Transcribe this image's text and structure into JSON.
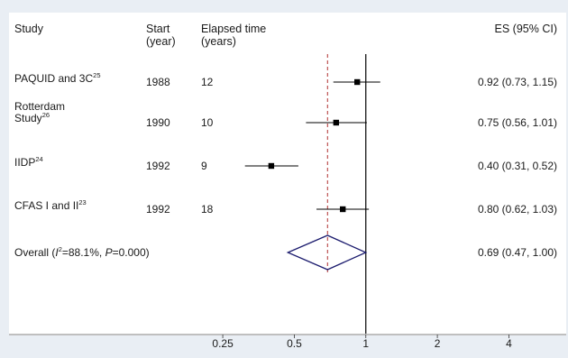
{
  "headers": {
    "study": "Study",
    "start_line1": "Start",
    "start_line2": "(year)",
    "elapsed_line1": "Elapsed time",
    "elapsed_line2": "(years)",
    "es": "ES (95% CI)"
  },
  "overall_label": {
    "prefix": "Overall (",
    "i_sym": "I",
    "i_sup": "2",
    "mid": "=88.1%, ",
    "p_sym": "P",
    "suffix": "=0.000)"
  },
  "chart_data": {
    "type": "forest",
    "x_scale": "log",
    "xlim": [
      0.16,
      6.5
    ],
    "xticks": [
      0.25,
      0.5,
      1,
      2,
      4
    ],
    "tick_labels": [
      "0.25",
      "0.5",
      "1",
      "2",
      "4"
    ],
    "null_line": 1,
    "overall_line": 0.69,
    "studies": [
      {
        "name_lines": [
          "PAQUID and 3C"
        ],
        "sup": "25",
        "start": "1988",
        "elapsed": "12",
        "es": 0.92,
        "lo": 0.73,
        "hi": 1.15,
        "es_text": "0.92 (0.73, 1.15)"
      },
      {
        "name_lines": [
          "Rotterdam",
          "Study"
        ],
        "sup": "26",
        "start": "1990",
        "elapsed": "10",
        "es": 0.75,
        "lo": 0.56,
        "hi": 1.01,
        "es_text": "0.75 (0.56, 1.01)"
      },
      {
        "name_lines": [
          "IIDP"
        ],
        "sup": "24",
        "start": "1992",
        "elapsed": "9",
        "es": 0.4,
        "lo": 0.31,
        "hi": 0.52,
        "es_text": "0.40 (0.31, 0.52)"
      },
      {
        "name_lines": [
          "CFAS I and II"
        ],
        "sup": "23",
        "start": "1992",
        "elapsed": "18",
        "es": 0.8,
        "lo": 0.62,
        "hi": 1.03,
        "es_text": "0.80 (0.62, 1.03)"
      }
    ],
    "overall": {
      "es": 0.69,
      "lo": 0.47,
      "hi": 1.0,
      "es_text": "0.69 (0.47, 1.00)"
    },
    "colors": {
      "diamond": "#1c1c6e",
      "overall_line": "#b03030",
      "marks": "#000000"
    }
  }
}
